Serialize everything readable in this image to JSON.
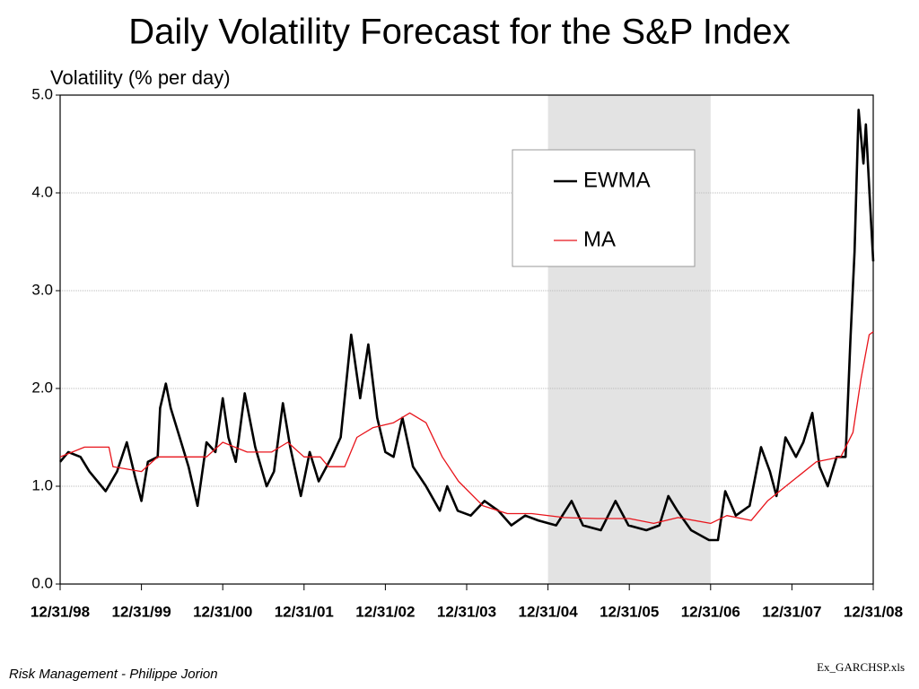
{
  "chart_data": {
    "type": "line",
    "title": "Daily Volatility Forecast for the S&P Index",
    "y_label": "Volatility (% per day)",
    "footer_left": "Risk Management - Philippe Jorion",
    "footer_right": "Ex_GARCHSP.xls",
    "xlim": [
      1999,
      2009
    ],
    "xticks": [
      {
        "value": 1999,
        "label": "12/31/98"
      },
      {
        "value": 2000,
        "label": "12/31/99"
      },
      {
        "value": 2001,
        "label": "12/31/00"
      },
      {
        "value": 2002,
        "label": "12/31/01"
      },
      {
        "value": 2003,
        "label": "12/31/02"
      },
      {
        "value": 2004,
        "label": "12/31/03"
      },
      {
        "value": 2005,
        "label": "12/31/04"
      },
      {
        "value": 2006,
        "label": "12/31/05"
      },
      {
        "value": 2007,
        "label": "12/31/06"
      },
      {
        "value": 2008,
        "label": "12/31/07"
      },
      {
        "value": 2009,
        "label": "12/31/08"
      }
    ],
    "ylim": [
      0,
      5
    ],
    "yticks": [
      {
        "value": 0,
        "label": "0.0"
      },
      {
        "value": 1,
        "label": "1.0"
      },
      {
        "value": 2,
        "label": "2.0"
      },
      {
        "value": 3,
        "label": "3.0"
      },
      {
        "value": 4,
        "label": "4.0"
      },
      {
        "value": 5,
        "label": "5.0"
      }
    ],
    "grid": true,
    "shaded_region": [
      2005,
      2007
    ],
    "shade_color": "#e3e3e3",
    "legend": "upper right",
    "series": [
      {
        "name": "EWMA",
        "color": "#000000",
        "x": [
          1999.0,
          1999.1,
          1999.25,
          1999.36,
          1999.56,
          1999.7,
          1999.82,
          1999.92,
          2000.0,
          2000.08,
          2000.2,
          2000.23,
          2000.3,
          2000.36,
          2000.47,
          2000.58,
          2000.69,
          2000.8,
          2000.91,
          2001.0,
          2001.07,
          2001.16,
          2001.27,
          2001.4,
          2001.54,
          2001.63,
          2001.74,
          2001.83,
          2001.96,
          2002.07,
          2002.18,
          2002.34,
          2002.45,
          2002.58,
          2002.69,
          2002.79,
          2002.9,
          2003.0,
          2003.1,
          2003.21,
          2003.34,
          2003.5,
          2003.67,
          2003.76,
          2003.89,
          2004.05,
          2004.22,
          2004.39,
          2004.55,
          2004.72,
          2004.88,
          2005.1,
          2005.29,
          2005.43,
          2005.65,
          2005.83,
          2005.99,
          2006.21,
          2006.37,
          2006.48,
          2006.59,
          2006.76,
          2006.98,
          2007.09,
          2007.18,
          2007.31,
          2007.48,
          2007.62,
          2007.73,
          2007.81,
          2007.92,
          2008.05,
          2008.14,
          2008.25,
          2008.34,
          2008.44,
          2008.55,
          2008.66,
          2008.72,
          2008.77,
          2008.82,
          2008.88,
          2008.91,
          2008.96,
          2009.0
        ],
        "values": [
          1.25,
          1.35,
          1.3,
          1.15,
          0.95,
          1.15,
          1.45,
          1.1,
          0.85,
          1.25,
          1.3,
          1.8,
          2.05,
          1.8,
          1.5,
          1.2,
          0.8,
          1.45,
          1.35,
          1.9,
          1.5,
          1.25,
          1.95,
          1.4,
          1.0,
          1.15,
          1.85,
          1.4,
          0.9,
          1.35,
          1.05,
          1.3,
          1.5,
          2.55,
          1.9,
          2.45,
          1.7,
          1.35,
          1.3,
          1.7,
          1.2,
          1.0,
          0.75,
          1.0,
          0.75,
          0.7,
          0.85,
          0.75,
          0.6,
          0.7,
          0.65,
          0.6,
          0.85,
          0.6,
          0.55,
          0.85,
          0.6,
          0.55,
          0.6,
          0.9,
          0.75,
          0.55,
          0.45,
          0.45,
          0.95,
          0.7,
          0.8,
          1.4,
          1.15,
          0.9,
          1.5,
          1.3,
          1.45,
          1.75,
          1.2,
          1.0,
          1.3,
          1.3,
          2.5,
          3.4,
          4.85,
          4.3,
          4.7,
          3.9,
          3.3
        ]
      },
      {
        "name": "MA",
        "color": "#e8141b",
        "x": [
          1999.0,
          1999.3,
          1999.6,
          1999.65,
          2000.0,
          2000.2,
          2000.5,
          2000.8,
          2001.0,
          2001.3,
          2001.6,
          2001.8,
          2002.0,
          2002.2,
          2002.3,
          2002.5,
          2002.65,
          2002.85,
          2003.1,
          2003.3,
          2003.5,
          2003.7,
          2003.9,
          2004.2,
          2004.5,
          2004.8,
          2005.2,
          2005.6,
          2006.0,
          2006.3,
          2006.6,
          2007.0,
          2007.2,
          2007.5,
          2007.7,
          2008.0,
          2008.3,
          2008.6,
          2008.75,
          2008.85,
          2008.95,
          2009.0
        ],
        "values": [
          1.3,
          1.4,
          1.4,
          1.2,
          1.15,
          1.3,
          1.3,
          1.3,
          1.45,
          1.35,
          1.35,
          1.45,
          1.3,
          1.3,
          1.2,
          1.2,
          1.5,
          1.6,
          1.65,
          1.75,
          1.65,
          1.3,
          1.05,
          0.8,
          0.72,
          0.72,
          0.68,
          0.67,
          0.67,
          0.62,
          0.68,
          0.62,
          0.7,
          0.65,
          0.85,
          1.05,
          1.25,
          1.3,
          1.55,
          2.1,
          2.55,
          2.58
        ]
      }
    ]
  }
}
